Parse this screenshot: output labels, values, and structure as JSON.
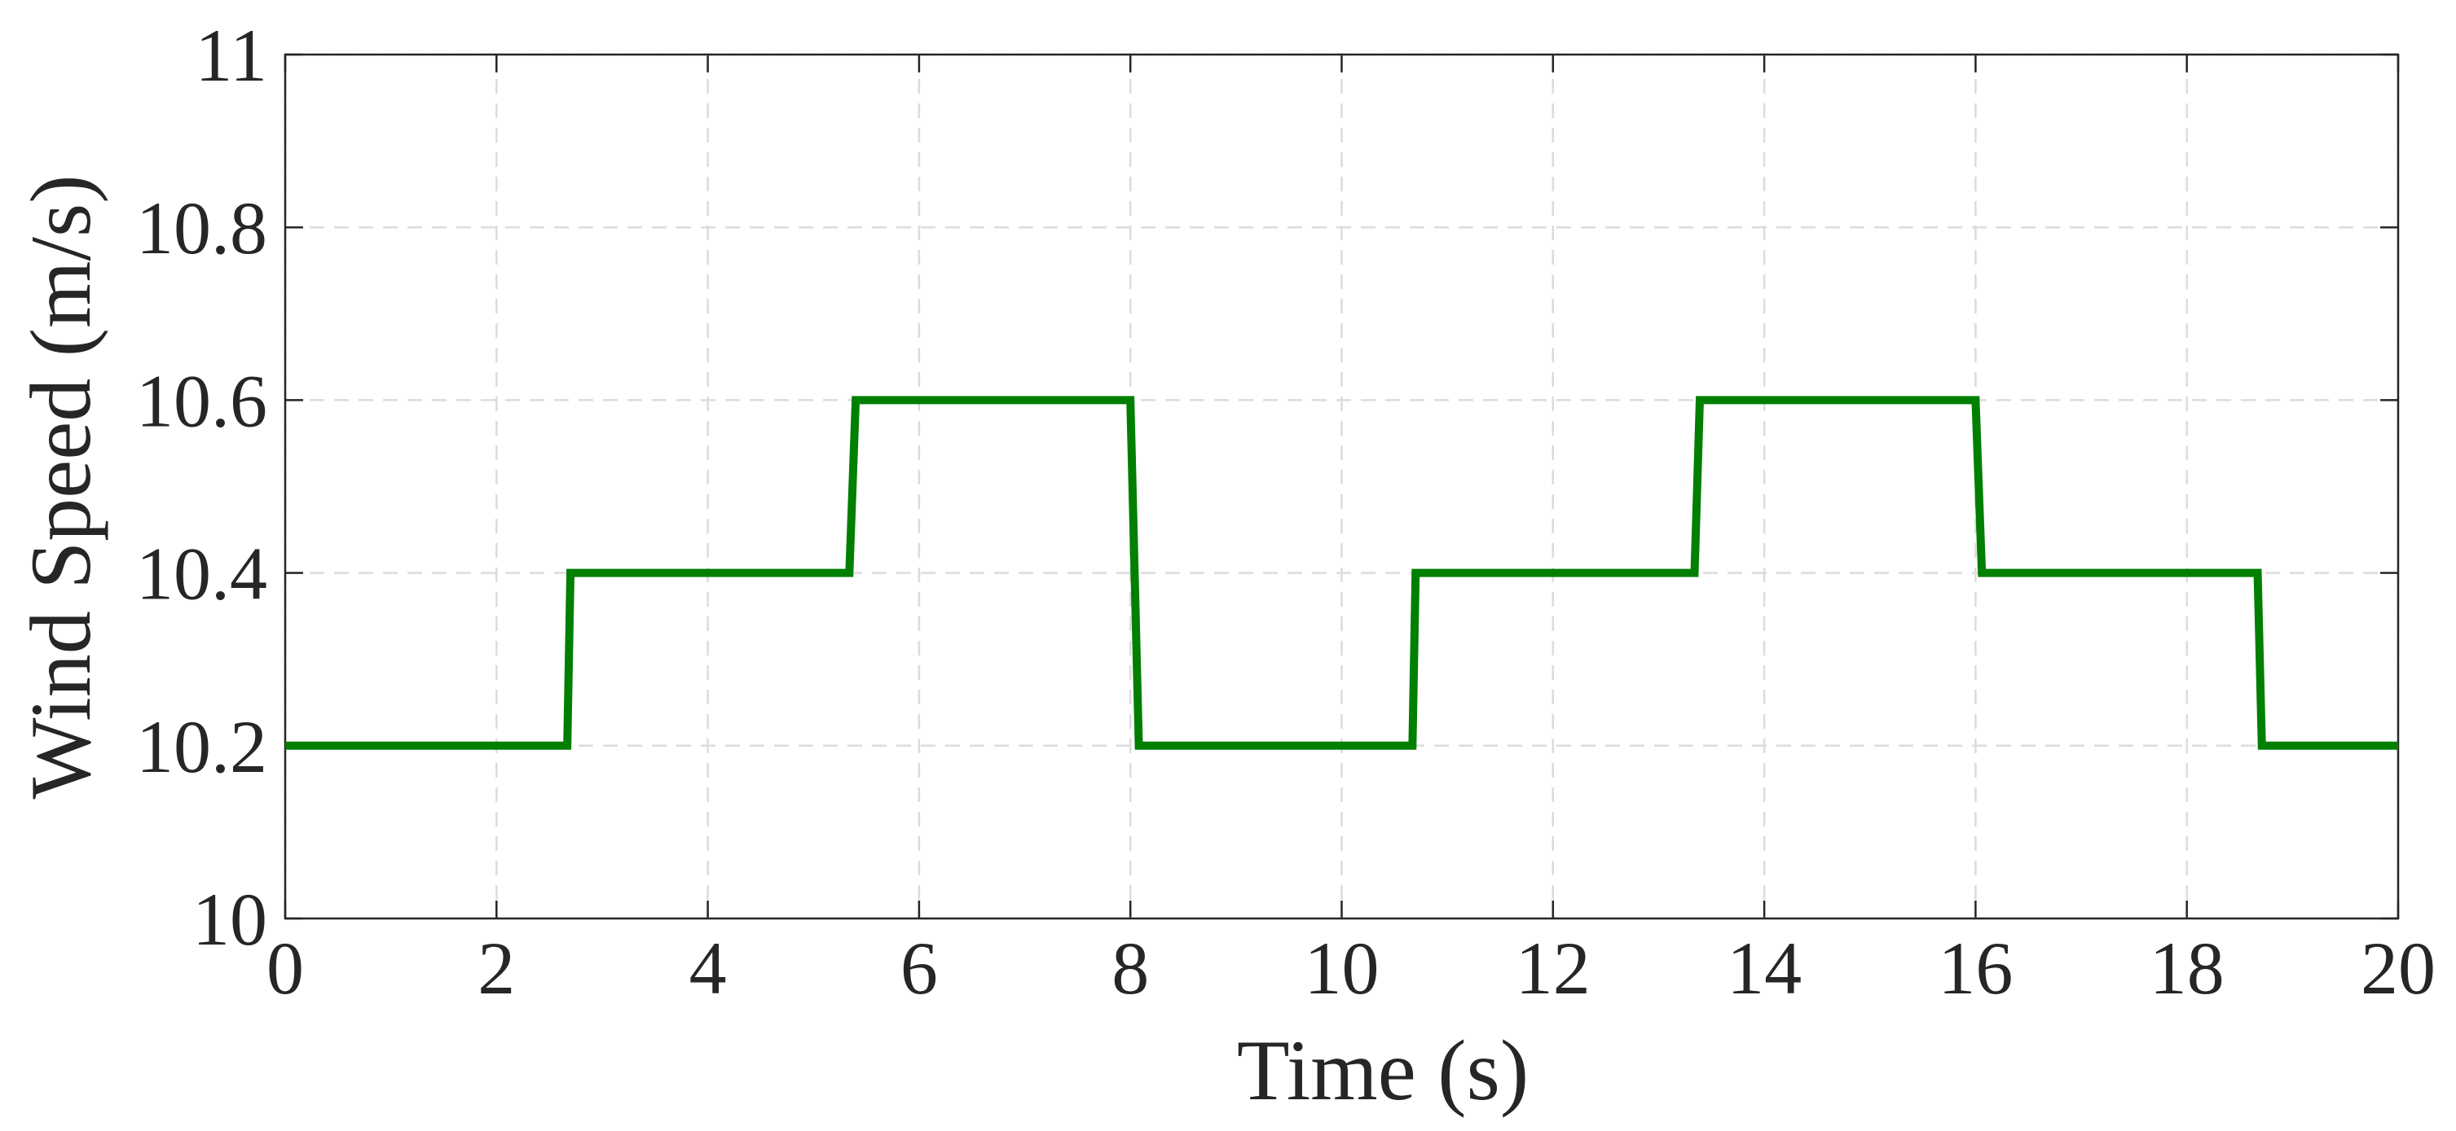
{
  "chart_data": {
    "type": "line",
    "xlabel": "Time (s)",
    "ylabel": "Wind Speed (m/s)",
    "x": [
      0,
      2.67,
      2.7,
      5.34,
      5.4,
      8.0,
      8.08,
      10.67,
      10.7,
      13.34,
      13.39,
      16.0,
      16.06,
      18.67,
      18.71,
      20
    ],
    "values": [
      10.2,
      10.2,
      10.4,
      10.4,
      10.6,
      10.6,
      10.2,
      10.2,
      10.4,
      10.4,
      10.6,
      10.6,
      10.4,
      10.4,
      10.2,
      10.2
    ],
    "color": "#007f00",
    "xlim": [
      0,
      20
    ],
    "xticks": [
      0,
      2,
      4,
      6,
      8,
      10,
      12,
      14,
      16,
      18,
      20
    ],
    "ylim": [
      10,
      11
    ],
    "yticks": [
      10,
      10.2,
      10.4,
      10.6,
      10.8,
      11
    ],
    "grid": true
  }
}
